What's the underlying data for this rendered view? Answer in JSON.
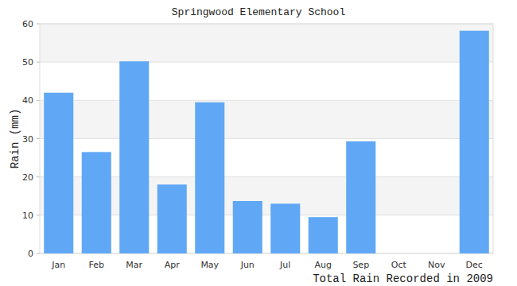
{
  "chart_data": {
    "type": "bar",
    "title": "Springwood Elementary School",
    "y_label": "Rain (mm)",
    "x_label": "Total Rain Recorded in 2009",
    "categories": [
      "Jan",
      "Feb",
      "Mar",
      "Apr",
      "May",
      "Jun",
      "Jul",
      "Aug",
      "Sep",
      "Oct",
      "Nov",
      "Dec"
    ],
    "values": [
      42,
      26.5,
      50.2,
      18,
      39.5,
      13.7,
      13,
      9.5,
      29.3,
      0,
      0,
      58.2
    ],
    "color": "#60a8f5",
    "ylim": [
      0,
      60
    ],
    "yticks": [
      0,
      10,
      20,
      30,
      40,
      50,
      60
    ],
    "grid": true
  }
}
